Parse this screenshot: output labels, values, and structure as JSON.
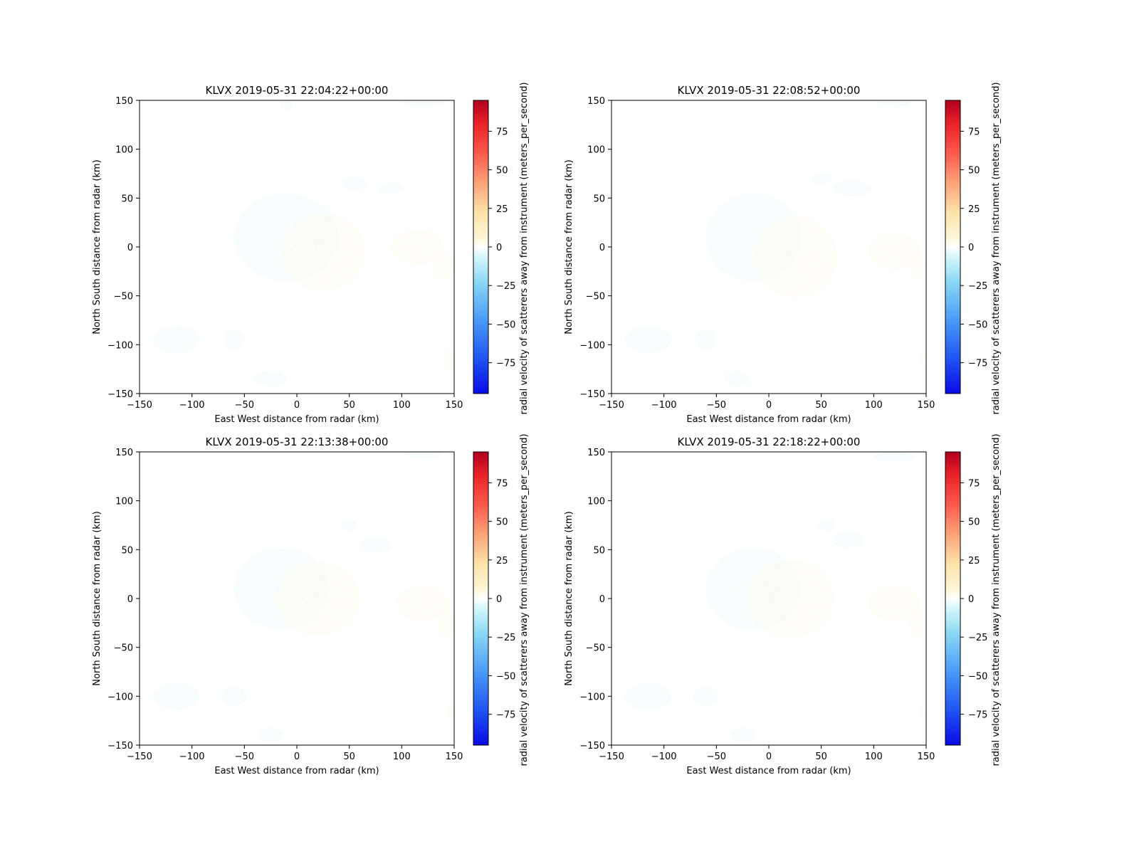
{
  "chart_data": [
    {
      "type": "heatmap",
      "title": "KLVX 2019-05-31 22:04:22+00:00",
      "xlabel": "East West distance from radar (km)",
      "ylabel": "North South distance from radar (km)",
      "xlim": [
        -150,
        150
      ],
      "ylim": [
        -150,
        150
      ],
      "xticks": [
        -150,
        -100,
        -50,
        0,
        50,
        100,
        150
      ],
      "yticks": [
        -150,
        -100,
        -50,
        0,
        50,
        100,
        150
      ],
      "colorbar": {
        "label": "radial velocity of scatterers away from instrument (meters_per_second)",
        "range": [
          -95,
          95
        ],
        "ticks": [
          -75,
          -50,
          -25,
          0,
          25,
          50,
          75
        ],
        "colormap": "pyart_BuDRd18"
      },
      "echo_regions": [
        {
          "x": -10,
          "y": 10,
          "rx": 50,
          "ry": 45,
          "v": -8
        },
        {
          "x": 25,
          "y": -5,
          "rx": 40,
          "ry": 40,
          "v": 6
        },
        {
          "x": 115,
          "y": 0,
          "rx": 25,
          "ry": 18,
          "v": 5
        },
        {
          "x": 140,
          "y": -20,
          "rx": 10,
          "ry": 15,
          "v": 8
        },
        {
          "x": 90,
          "y": 60,
          "rx": 12,
          "ry": 6,
          "v": -2
        },
        {
          "x": 55,
          "y": 65,
          "rx": 12,
          "ry": 7,
          "v": -2
        },
        {
          "x": -115,
          "y": -95,
          "rx": 22,
          "ry": 14,
          "v": -6
        },
        {
          "x": -60,
          "y": -95,
          "rx": 10,
          "ry": 10,
          "v": -4
        },
        {
          "x": 145,
          "y": -115,
          "rx": 6,
          "ry": 10,
          "v": 10
        },
        {
          "x": -25,
          "y": -135,
          "rx": 15,
          "ry": 8,
          "v": -3
        },
        {
          "x": 120,
          "y": 148,
          "rx": 20,
          "ry": 5,
          "v": -6
        },
        {
          "x": -10,
          "y": 145,
          "rx": 6,
          "ry": 5,
          "v": -4
        }
      ]
    },
    {
      "type": "heatmap",
      "title": "KLVX 2019-05-31 22:08:52+00:00",
      "xlabel": "East West distance from radar (km)",
      "ylabel": "North South distance from radar (km)",
      "xlim": [
        -150,
        150
      ],
      "ylim": [
        -150,
        150
      ],
      "xticks": [
        -150,
        -100,
        -50,
        0,
        50,
        100,
        150
      ],
      "yticks": [
        -150,
        -100,
        -50,
        0,
        50,
        100,
        150
      ],
      "colorbar": {
        "label": "radial velocity of scatterers away from instrument (meters_per_second)",
        "range": [
          -95,
          95
        ],
        "ticks": [
          -75,
          -50,
          -25,
          0,
          25,
          50,
          75
        ],
        "colormap": "pyart_BuDRd18"
      },
      "echo_regions": [
        {
          "x": -15,
          "y": 10,
          "rx": 45,
          "ry": 45,
          "v": -8
        },
        {
          "x": 25,
          "y": -10,
          "rx": 40,
          "ry": 42,
          "v": 6
        },
        {
          "x": 120,
          "y": -5,
          "rx": 25,
          "ry": 18,
          "v": 5
        },
        {
          "x": 142,
          "y": -20,
          "rx": 8,
          "ry": 14,
          "v": 8
        },
        {
          "x": 80,
          "y": 60,
          "rx": 18,
          "ry": 8,
          "v": -2
        },
        {
          "x": 50,
          "y": 70,
          "rx": 10,
          "ry": 6,
          "v": -2
        },
        {
          "x": -115,
          "y": -95,
          "rx": 22,
          "ry": 14,
          "v": -6
        },
        {
          "x": -60,
          "y": -95,
          "rx": 10,
          "ry": 10,
          "v": -4
        },
        {
          "x": 148,
          "y": -115,
          "rx": 5,
          "ry": 10,
          "v": 10
        },
        {
          "x": -30,
          "y": -135,
          "rx": 12,
          "ry": 8,
          "v": -3
        },
        {
          "x": 120,
          "y": 148,
          "rx": 15,
          "ry": 5,
          "v": -6
        }
      ]
    },
    {
      "type": "heatmap",
      "title": "KLVX 2019-05-31 22:13:38+00:00",
      "xlabel": "East West distance from radar (km)",
      "ylabel": "North South distance from radar (km)",
      "xlim": [
        -150,
        150
      ],
      "ylim": [
        -150,
        150
      ],
      "xticks": [
        -150,
        -100,
        -50,
        0,
        50,
        100,
        150
      ],
      "yticks": [
        -150,
        -100,
        -50,
        0,
        50,
        100,
        150
      ],
      "colorbar": {
        "label": "radial velocity of scatterers away from instrument (meters_per_second)",
        "range": [
          -95,
          95
        ],
        "ticks": [
          -75,
          -50,
          -25,
          0,
          25,
          50,
          75
        ],
        "colormap": "pyart_BuDRd18"
      },
      "echo_regions": [
        {
          "x": -15,
          "y": 10,
          "rx": 45,
          "ry": 42,
          "v": -8
        },
        {
          "x": 20,
          "y": 0,
          "rx": 40,
          "ry": 38,
          "v": 6
        },
        {
          "x": 120,
          "y": -5,
          "rx": 25,
          "ry": 18,
          "v": 5
        },
        {
          "x": 142,
          "y": -25,
          "rx": 8,
          "ry": 14,
          "v": 8
        },
        {
          "x": 75,
          "y": 55,
          "rx": 15,
          "ry": 8,
          "v": -2
        },
        {
          "x": 50,
          "y": 75,
          "rx": 8,
          "ry": 6,
          "v": -2
        },
        {
          "x": -115,
          "y": -100,
          "rx": 22,
          "ry": 14,
          "v": -6
        },
        {
          "x": -60,
          "y": -100,
          "rx": 12,
          "ry": 10,
          "v": -4
        },
        {
          "x": 148,
          "y": -115,
          "rx": 5,
          "ry": 8,
          "v": 10
        },
        {
          "x": -25,
          "y": -140,
          "rx": 12,
          "ry": 8,
          "v": -3
        },
        {
          "x": 120,
          "y": 148,
          "rx": 18,
          "ry": 5,
          "v": -6
        }
      ]
    },
    {
      "type": "heatmap",
      "title": "KLVX 2019-05-31 22:18:22+00:00",
      "xlabel": "East West distance from radar (km)",
      "ylabel": "North South distance from radar (km)",
      "xlim": [
        -150,
        150
      ],
      "ylim": [
        -150,
        150
      ],
      "xticks": [
        -150,
        -100,
        -50,
        0,
        50,
        100,
        150
      ],
      "yticks": [
        -150,
        -100,
        -50,
        0,
        50,
        100,
        150
      ],
      "colorbar": {
        "label": "radial velocity of scatterers away from instrument (meters_per_second)",
        "range": [
          -95,
          95
        ],
        "ticks": [
          -75,
          -50,
          -25,
          0,
          25,
          50,
          75
        ],
        "colormap": "pyart_BuDRd18"
      },
      "echo_regions": [
        {
          "x": -15,
          "y": 10,
          "rx": 45,
          "ry": 42,
          "v": -8
        },
        {
          "x": 20,
          "y": 0,
          "rx": 42,
          "ry": 40,
          "v": 6
        },
        {
          "x": 120,
          "y": -5,
          "rx": 25,
          "ry": 18,
          "v": 5
        },
        {
          "x": 142,
          "y": -25,
          "rx": 8,
          "ry": 14,
          "v": 8
        },
        {
          "x": 75,
          "y": 60,
          "rx": 15,
          "ry": 8,
          "v": -2
        },
        {
          "x": 55,
          "y": 75,
          "rx": 8,
          "ry": 6,
          "v": -2
        },
        {
          "x": -115,
          "y": -100,
          "rx": 22,
          "ry": 14,
          "v": -6
        },
        {
          "x": -60,
          "y": -100,
          "rx": 12,
          "ry": 10,
          "v": -4
        },
        {
          "x": 148,
          "y": -115,
          "rx": 4,
          "ry": 6,
          "v": 10
        },
        {
          "x": -25,
          "y": -140,
          "rx": 12,
          "ry": 8,
          "v": -3
        },
        {
          "x": 120,
          "y": 145,
          "rx": 20,
          "ry": 5,
          "v": -6
        }
      ]
    }
  ]
}
